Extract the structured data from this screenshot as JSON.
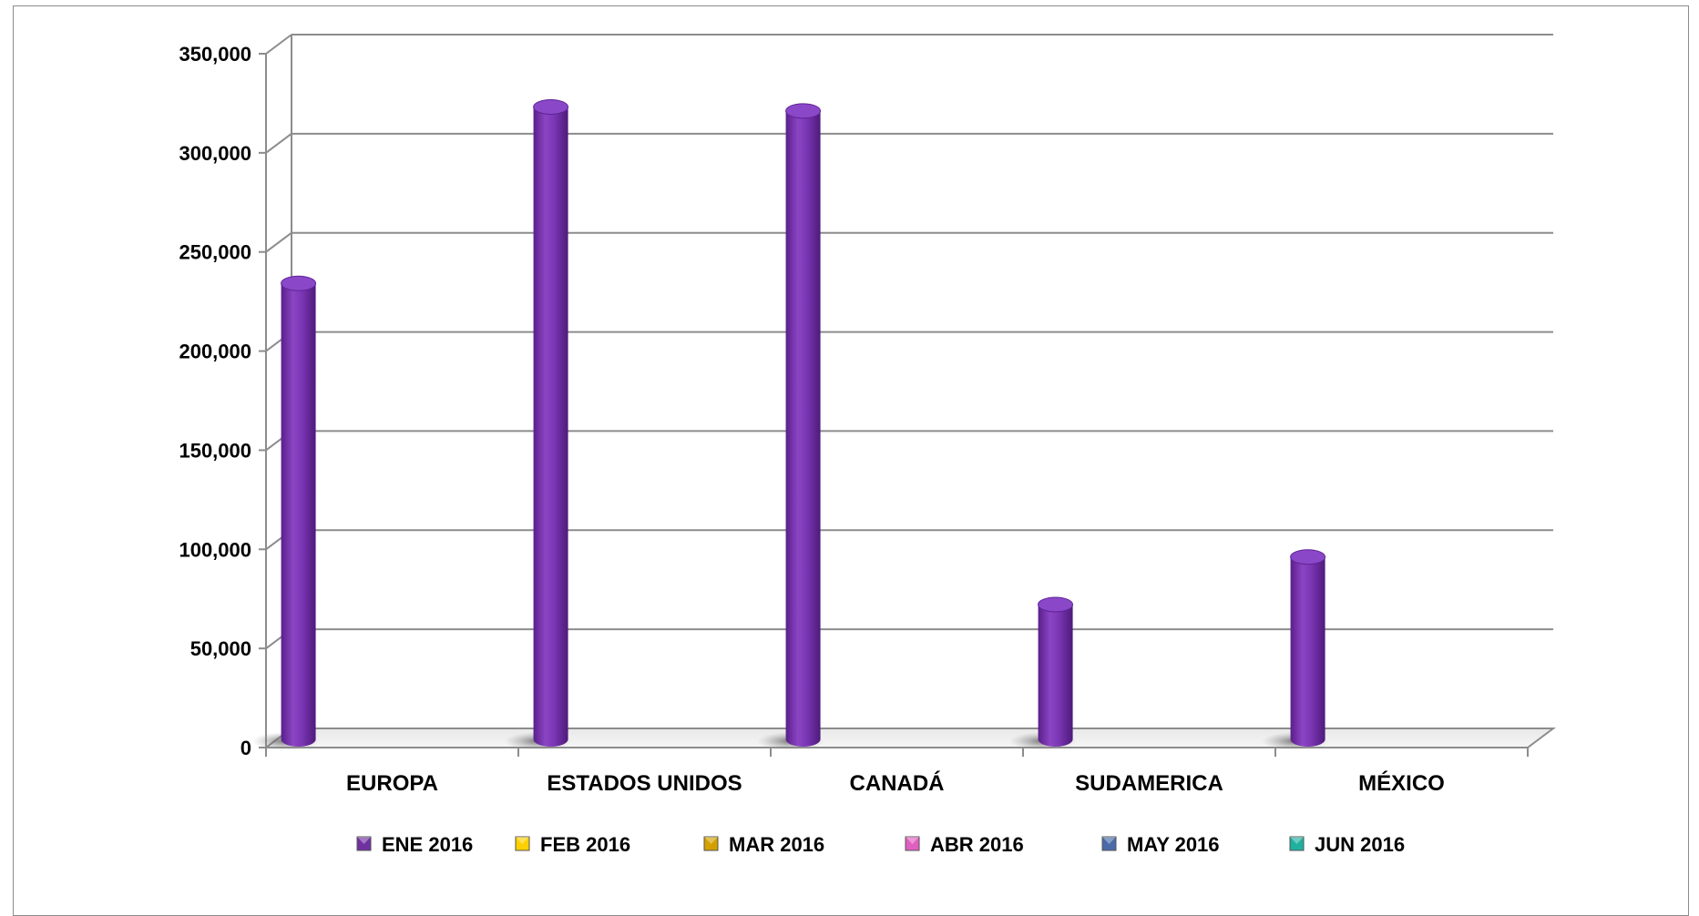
{
  "chart_data": {
    "type": "bar",
    "categories": [
      "EUROPA",
      "ESTADOS UNIDOS",
      "CANADÁ",
      "SUDAMERICA",
      "MÉXICO"
    ],
    "series": [
      {
        "name": "ENE 2016",
        "color": "#7030a0",
        "values": [
          230000,
          319000,
          317000,
          68000,
          92000
        ]
      },
      {
        "name": "FEB 2016",
        "color": "#ffd000",
        "values": [
          0,
          0,
          0,
          0,
          0
        ]
      },
      {
        "name": "MAR 2016",
        "color": "#d4a000",
        "values": [
          0,
          0,
          0,
          0,
          0
        ]
      },
      {
        "name": "ABR 2016",
        "color": "#e060c0",
        "values": [
          0,
          0,
          0,
          0,
          0
        ]
      },
      {
        "name": "MAY 2016",
        "color": "#4a6aa8",
        "values": [
          0,
          0,
          0,
          0,
          0
        ]
      },
      {
        "name": "JUN 2016",
        "color": "#20b0a0",
        "values": [
          0,
          0,
          0,
          0,
          0
        ]
      }
    ],
    "y_ticks": [
      "0",
      "50,000",
      "100,000",
      "150,000",
      "200,000",
      "250,000",
      "300,000",
      "350,000"
    ],
    "ylim": [
      0,
      350000
    ],
    "grid": true,
    "legend_position": "bottom",
    "title": "",
    "xlabel": "",
    "ylabel": ""
  }
}
